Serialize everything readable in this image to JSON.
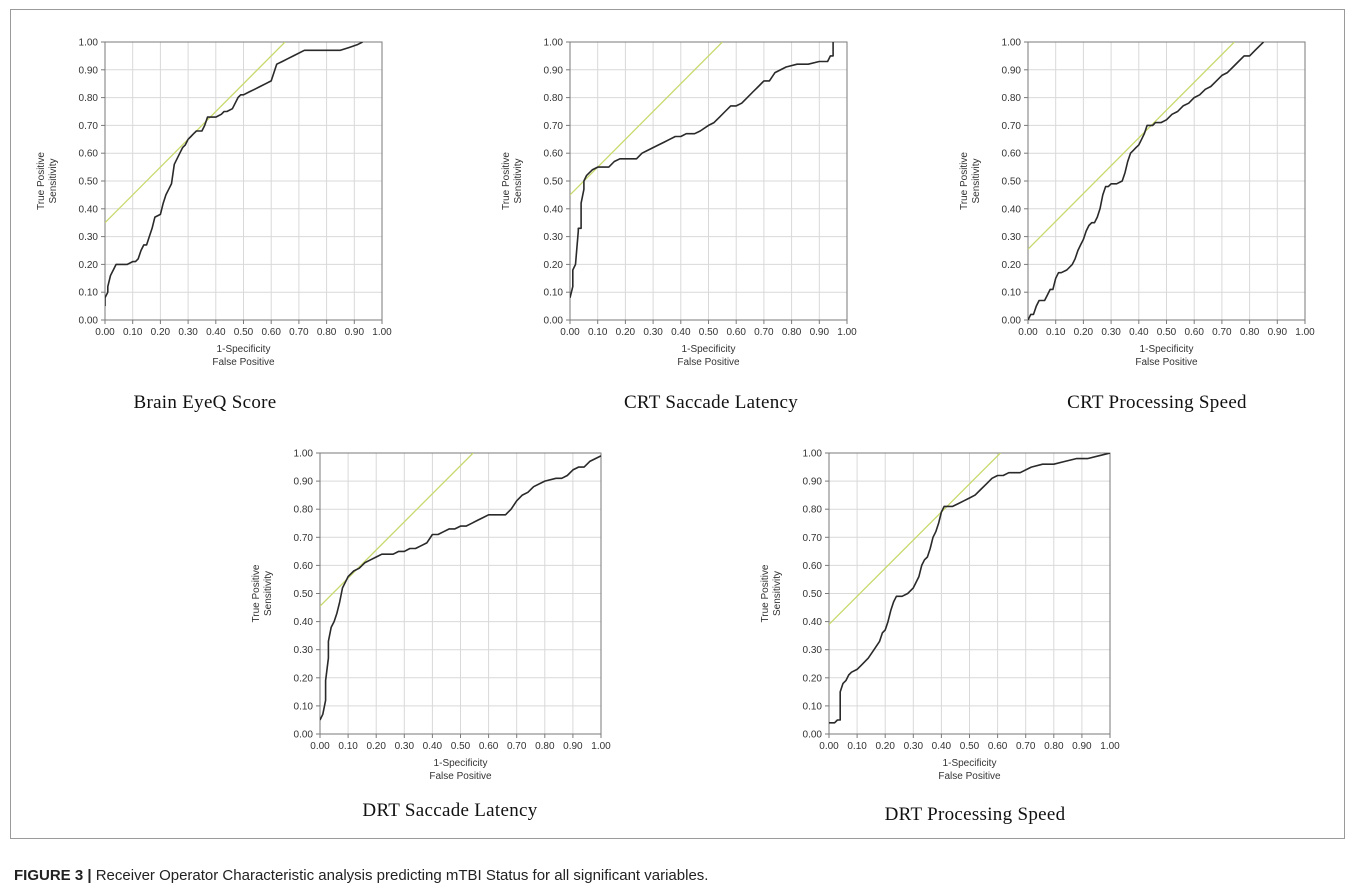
{
  "figure": {
    "caption_label": "FIGURE 3 |",
    "caption_text": "Receiver Operator Characteristic analysis predicting mTBI Status for all significant variables."
  },
  "colors": {
    "roc_line": "#2a2a2a",
    "tangent_line": "#c9d96e",
    "grid": "#d9d9d9",
    "axis": "#7a7a7a"
  },
  "chart_data": [
    {
      "type": "line",
      "title": "Brain  EyeQ Score",
      "xlabel": "1-Specificity",
      "xlabel2": "False Positive",
      "ylabel": "True Positive",
      "ylabel2": "Sensitivity",
      "xlim": [
        0,
        1
      ],
      "ylim": [
        0,
        1
      ],
      "grid": true,
      "ticks": [
        "0.00",
        "0.10",
        "0.20",
        "0.30",
        "0.40",
        "0.50",
        "0.60",
        "0.70",
        "0.80",
        "0.90",
        "1.00"
      ],
      "roc": {
        "x": [
          0,
          0,
          0.01,
          0.01,
          0.02,
          0.03,
          0.04,
          0.05,
          0.06,
          0.07,
          0.08,
          0.1,
          0.11,
          0.12,
          0.13,
          0.14,
          0.15,
          0.16,
          0.17,
          0.18,
          0.2,
          0.21,
          0.22,
          0.23,
          0.24,
          0.25,
          0.26,
          0.27,
          0.28,
          0.29,
          0.3,
          0.31,
          0.32,
          0.33,
          0.34,
          0.35,
          0.36,
          0.37,
          0.38,
          0.39,
          0.4,
          0.42,
          0.43,
          0.44,
          0.46,
          0.48,
          0.49,
          0.5,
          0.52,
          0.54,
          0.56,
          0.58,
          0.6,
          0.62,
          0.64,
          0.66,
          0.68,
          0.72,
          0.76,
          0.8,
          0.85,
          0.88,
          0.91,
          0.93
        ],
        "y": [
          0.05,
          0.08,
          0.1,
          0.12,
          0.16,
          0.18,
          0.2,
          0.2,
          0.2,
          0.2,
          0.2,
          0.21,
          0.21,
          0.22,
          0.25,
          0.27,
          0.27,
          0.3,
          0.33,
          0.37,
          0.38,
          0.42,
          0.45,
          0.47,
          0.49,
          0.56,
          0.58,
          0.6,
          0.62,
          0.63,
          0.65,
          0.66,
          0.67,
          0.68,
          0.68,
          0.68,
          0.7,
          0.73,
          0.73,
          0.73,
          0.73,
          0.74,
          0.75,
          0.75,
          0.76,
          0.8,
          0.81,
          0.81,
          0.82,
          0.83,
          0.84,
          0.85,
          0.86,
          0.92,
          0.93,
          0.94,
          0.95,
          0.97,
          0.97,
          0.97,
          0.97,
          0.98,
          0.99,
          1.0
        ]
      },
      "tangent": {
        "x0": 0,
        "y0": 0.35,
        "slope": 1
      }
    },
    {
      "type": "line",
      "title": "CRT  Saccade  Latency",
      "xlabel": "1-Specificity",
      "xlabel2": "False Positive",
      "ylabel": "True Positive",
      "ylabel2": "Sensitivity",
      "xlim": [
        0,
        1
      ],
      "ylim": [
        0,
        1
      ],
      "grid": true,
      "ticks": [
        "0.00",
        "0.10",
        "0.20",
        "0.30",
        "0.40",
        "0.50",
        "0.60",
        "0.70",
        "0.80",
        "0.90",
        "1.00"
      ],
      "roc": {
        "x": [
          0,
          0.01,
          0.01,
          0.02,
          0.03,
          0.03,
          0.04,
          0.04,
          0.05,
          0.05,
          0.06,
          0.07,
          0.08,
          0.1,
          0.12,
          0.14,
          0.16,
          0.18,
          0.2,
          0.22,
          0.24,
          0.26,
          0.28,
          0.3,
          0.32,
          0.34,
          0.36,
          0.38,
          0.4,
          0.42,
          0.45,
          0.47,
          0.5,
          0.52,
          0.54,
          0.56,
          0.58,
          0.6,
          0.62,
          0.64,
          0.66,
          0.68,
          0.7,
          0.72,
          0.74,
          0.78,
          0.82,
          0.86,
          0.9,
          0.93,
          0.94,
          0.95,
          0.95
        ],
        "y": [
          0.08,
          0.12,
          0.18,
          0.2,
          0.32,
          0.33,
          0.33,
          0.42,
          0.47,
          0.5,
          0.52,
          0.53,
          0.54,
          0.55,
          0.55,
          0.55,
          0.57,
          0.58,
          0.58,
          0.58,
          0.58,
          0.6,
          0.61,
          0.62,
          0.63,
          0.64,
          0.65,
          0.66,
          0.66,
          0.67,
          0.67,
          0.68,
          0.7,
          0.71,
          0.73,
          0.75,
          0.77,
          0.77,
          0.78,
          0.8,
          0.82,
          0.84,
          0.86,
          0.86,
          0.89,
          0.91,
          0.92,
          0.92,
          0.93,
          0.93,
          0.95,
          0.95,
          1.0
        ]
      },
      "tangent": {
        "x0": 0,
        "y0": 0.45,
        "slope": 1
      }
    },
    {
      "type": "line",
      "title": "CRT  Processing  Speed",
      "xlabel": "1-Specificity",
      "xlabel2": "False Positive",
      "ylabel": "True Positive",
      "ylabel2": "Sensitivity",
      "xlim": [
        0,
        1
      ],
      "ylim": [
        0,
        1
      ],
      "grid": true,
      "ticks": [
        "0.00",
        "0.10",
        "0.20",
        "0.30",
        "0.40",
        "0.50",
        "0.60",
        "0.70",
        "0.80",
        "0.90",
        "1.00"
      ],
      "roc": {
        "x": [
          0,
          0.01,
          0.02,
          0.03,
          0.04,
          0.06,
          0.07,
          0.08,
          0.09,
          0.1,
          0.11,
          0.12,
          0.14,
          0.16,
          0.17,
          0.18,
          0.19,
          0.2,
          0.21,
          0.22,
          0.23,
          0.24,
          0.25,
          0.26,
          0.27,
          0.28,
          0.29,
          0.3,
          0.32,
          0.34,
          0.35,
          0.36,
          0.37,
          0.38,
          0.39,
          0.4,
          0.41,
          0.42,
          0.43,
          0.44,
          0.45,
          0.46,
          0.48,
          0.5,
          0.52,
          0.54,
          0.56,
          0.58,
          0.6,
          0.62,
          0.64,
          0.66,
          0.68,
          0.7,
          0.72,
          0.74,
          0.76,
          0.78,
          0.8,
          0.82,
          0.84,
          0.85
        ],
        "y": [
          0,
          0.02,
          0.02,
          0.05,
          0.07,
          0.07,
          0.09,
          0.11,
          0.11,
          0.15,
          0.17,
          0.17,
          0.18,
          0.2,
          0.22,
          0.25,
          0.27,
          0.29,
          0.32,
          0.34,
          0.35,
          0.35,
          0.37,
          0.4,
          0.45,
          0.48,
          0.48,
          0.49,
          0.49,
          0.5,
          0.53,
          0.57,
          0.6,
          0.61,
          0.62,
          0.63,
          0.65,
          0.67,
          0.7,
          0.7,
          0.7,
          0.71,
          0.71,
          0.72,
          0.74,
          0.75,
          0.77,
          0.78,
          0.8,
          0.81,
          0.83,
          0.84,
          0.86,
          0.88,
          0.89,
          0.91,
          0.93,
          0.95,
          0.95,
          0.97,
          0.99,
          1.0
        ]
      },
      "tangent": {
        "x0": 0,
        "y0": 0.255,
        "slope": 1
      }
    },
    {
      "type": "line",
      "title": "DRT  Saccade  Latency",
      "xlabel": "1-Specificity",
      "xlabel2": "False Positive",
      "ylabel": "True Positive",
      "ylabel2": "Sensitivity",
      "xlim": [
        0,
        1
      ],
      "ylim": [
        0,
        1
      ],
      "grid": true,
      "ticks": [
        "0.00",
        "0.10",
        "0.20",
        "0.30",
        "0.40",
        "0.50",
        "0.60",
        "0.70",
        "0.80",
        "0.90",
        "1.00"
      ],
      "roc": {
        "x": [
          0,
          0.01,
          0.02,
          0.02,
          0.03,
          0.03,
          0.04,
          0.05,
          0.06,
          0.07,
          0.08,
          0.09,
          0.1,
          0.11,
          0.12,
          0.14,
          0.16,
          0.18,
          0.2,
          0.22,
          0.24,
          0.26,
          0.28,
          0.3,
          0.32,
          0.34,
          0.36,
          0.38,
          0.4,
          0.42,
          0.44,
          0.46,
          0.48,
          0.5,
          0.52,
          0.54,
          0.56,
          0.58,
          0.6,
          0.62,
          0.64,
          0.66,
          0.68,
          0.7,
          0.72,
          0.74,
          0.76,
          0.8,
          0.84,
          0.86,
          0.88,
          0.9,
          0.92,
          0.94,
          0.96,
          0.98,
          1.0
        ],
        "y": [
          0.05,
          0.07,
          0.12,
          0.19,
          0.27,
          0.33,
          0.38,
          0.4,
          0.43,
          0.47,
          0.52,
          0.54,
          0.56,
          0.57,
          0.58,
          0.59,
          0.61,
          0.62,
          0.63,
          0.64,
          0.64,
          0.64,
          0.65,
          0.65,
          0.66,
          0.66,
          0.67,
          0.68,
          0.71,
          0.71,
          0.72,
          0.73,
          0.73,
          0.74,
          0.74,
          0.75,
          0.76,
          0.77,
          0.78,
          0.78,
          0.78,
          0.78,
          0.8,
          0.83,
          0.85,
          0.86,
          0.88,
          0.9,
          0.91,
          0.91,
          0.92,
          0.94,
          0.95,
          0.95,
          0.97,
          0.98,
          0.99
        ]
      },
      "tangent": {
        "x0": 0,
        "y0": 0.455,
        "slope": 1
      }
    },
    {
      "type": "line",
      "title": "DRT  Processing  Speed",
      "xlabel": "1-Specificity",
      "xlabel2": "False Positive",
      "ylabel": "True Positive",
      "ylabel2": "Sensitivity",
      "xlim": [
        0,
        1
      ],
      "ylim": [
        0,
        1
      ],
      "grid": true,
      "ticks": [
        "0.00",
        "0.10",
        "0.20",
        "0.30",
        "0.40",
        "0.50",
        "0.60",
        "0.70",
        "0.80",
        "0.90",
        "1.00"
      ],
      "roc": {
        "x": [
          0,
          0.02,
          0.03,
          0.04,
          0.04,
          0.05,
          0.06,
          0.07,
          0.08,
          0.1,
          0.12,
          0.14,
          0.16,
          0.18,
          0.19,
          0.2,
          0.21,
          0.22,
          0.23,
          0.24,
          0.26,
          0.28,
          0.3,
          0.32,
          0.33,
          0.34,
          0.35,
          0.36,
          0.37,
          0.38,
          0.39,
          0.4,
          0.41,
          0.42,
          0.44,
          0.46,
          0.48,
          0.5,
          0.52,
          0.54,
          0.56,
          0.58,
          0.6,
          0.62,
          0.64,
          0.66,
          0.68,
          0.72,
          0.76,
          0.8,
          0.84,
          0.88,
          0.92,
          0.96,
          1.0
        ],
        "y": [
          0.04,
          0.04,
          0.05,
          0.05,
          0.15,
          0.18,
          0.19,
          0.21,
          0.22,
          0.23,
          0.25,
          0.27,
          0.3,
          0.33,
          0.36,
          0.37,
          0.4,
          0.44,
          0.47,
          0.49,
          0.49,
          0.5,
          0.52,
          0.56,
          0.6,
          0.62,
          0.63,
          0.66,
          0.7,
          0.72,
          0.75,
          0.79,
          0.81,
          0.81,
          0.81,
          0.82,
          0.83,
          0.84,
          0.85,
          0.87,
          0.89,
          0.91,
          0.92,
          0.92,
          0.93,
          0.93,
          0.93,
          0.95,
          0.96,
          0.96,
          0.97,
          0.98,
          0.98,
          0.99,
          1.0
        ]
      },
      "tangent": {
        "x0": 0,
        "y0": 0.39,
        "slope": 1
      }
    }
  ]
}
